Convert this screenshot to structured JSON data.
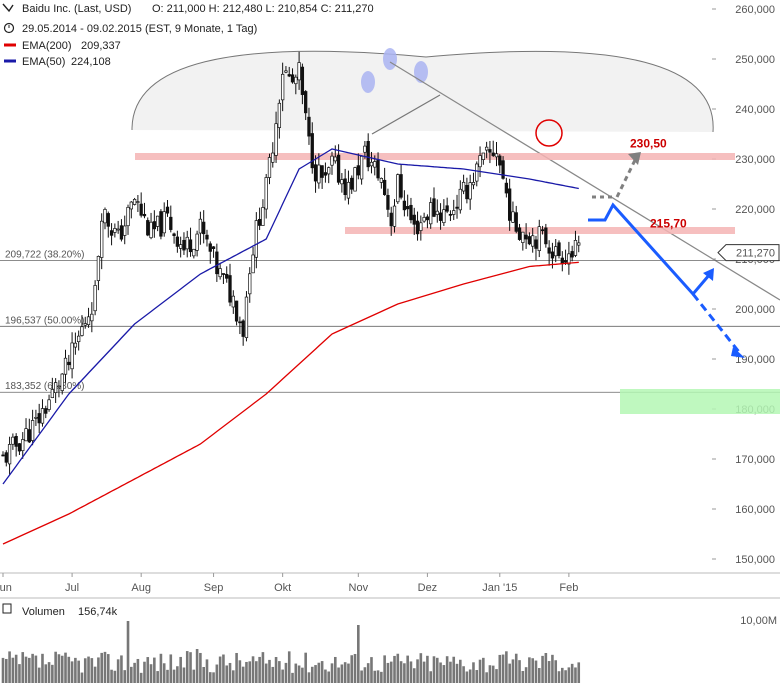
{
  "header": {
    "title": "Baidu Inc. (Last, USD)",
    "ohlc": "O: 211,000   H: 212,480   L: 210,854   C: 211,270",
    "period": "29.05.2014 - 09.02.2015 (EST, 9 Monate, 1 Tag)",
    "ema200_label": "EMA(200)",
    "ema200_value": "209,337",
    "ema50_label": "EMA(50)",
    "ema50_value": "224,108"
  },
  "colors": {
    "ema200": "#e00000",
    "ema50": "#1a1aa8",
    "resistance_band": "#f4b4b4",
    "target_zone": "#b4f7b4",
    "projection_blue": "#1a5cff",
    "projection_gray": "#808080",
    "candles": "#111111"
  },
  "annotations": {
    "level_high": "230,50",
    "level_low": "215,70",
    "last_price": "211,270",
    "fib_382": "209,722 (38.20%)",
    "fib_50": "196,537 (50.00%)",
    "fib_618": "183,352 (61.80%)"
  },
  "volume": {
    "label": "Volumen",
    "value": "156,74k",
    "axis_label": "10,00M"
  },
  "chart_data": {
    "type": "candlestick",
    "ylim": [
      143,
      264
    ],
    "y_ticks": [
      "260,000",
      "250,000",
      "240,000",
      "230,000",
      "220,000",
      "210,000",
      "200,000",
      "190,000",
      "180,000",
      "170,000",
      "160,000",
      "150,000"
    ],
    "x_ticks": [
      "Jun",
      "Jul",
      "Aug",
      "Sep",
      "Okt",
      "Nov",
      "Dez",
      "Jan '15",
      "Feb"
    ],
    "close_path_days": [
      0,
      10,
      20,
      28,
      30,
      35,
      40,
      45,
      50,
      55,
      60,
      65,
      70,
      73,
      75,
      78,
      80,
      83,
      85,
      88,
      90,
      93,
      95,
      98,
      100,
      105,
      110,
      115,
      118,
      120,
      125,
      130,
      135,
      140,
      145,
      150,
      155,
      160,
      165,
      168,
      172,
      175
    ],
    "close_path_values": [
      170,
      177,
      189,
      203,
      220,
      214,
      222,
      215,
      218,
      212,
      216,
      208,
      202,
      196,
      209,
      219,
      224,
      238,
      248,
      245,
      247,
      233,
      228,
      225,
      229,
      224,
      231,
      226,
      218,
      225,
      216,
      220,
      219,
      223,
      229,
      232,
      217,
      215,
      214,
      211,
      211.27,
      211.27
    ],
    "ema200_days": [
      0,
      20,
      40,
      60,
      80,
      100,
      120,
      140,
      160,
      175
    ],
    "ema200_values": [
      153,
      159,
      166,
      173,
      183,
      195,
      201,
      205,
      208.5,
      209.34
    ],
    "ema50_days": [
      0,
      20,
      40,
      60,
      80,
      90,
      100,
      120,
      140,
      160,
      175
    ],
    "ema50_values": [
      165,
      183,
      197,
      207,
      214,
      228,
      232,
      229,
      228,
      226,
      224.1
    ],
    "levels": [
      230.5,
      215.7
    ],
    "fibonacci": [
      209.722,
      196.537,
      183.352
    ],
    "target_zone": [
      179,
      184
    ],
    "volume_axis_max": 10000000
  }
}
